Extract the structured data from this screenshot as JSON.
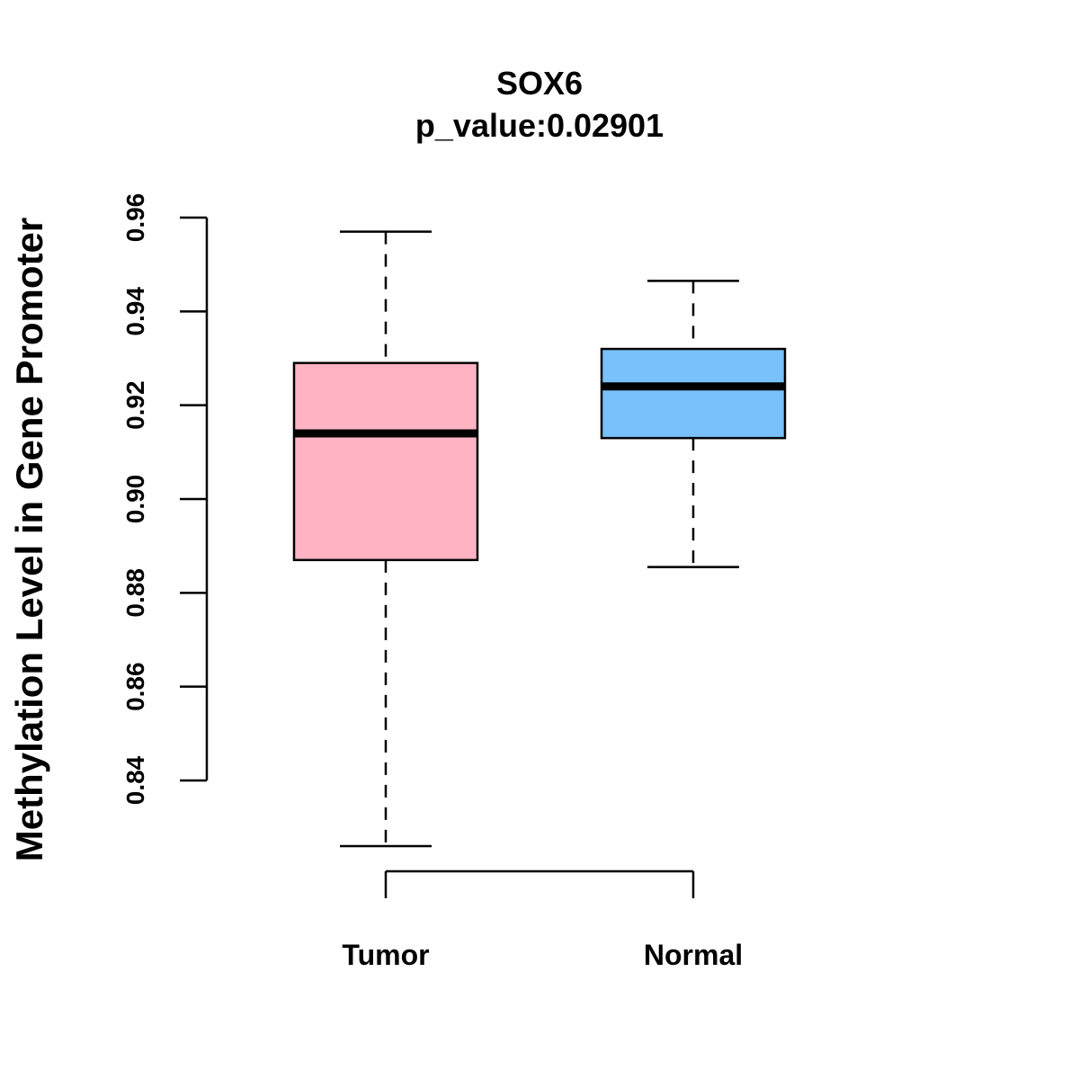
{
  "chart_data": {
    "type": "boxplot",
    "title": "SOX6",
    "subtitle": "p_value:0.02901",
    "ylabel": "Methylation Level in Gene Promoter",
    "xlabel": "",
    "yticks": [
      0.84,
      0.86,
      0.88,
      0.9,
      0.92,
      0.94,
      0.96
    ],
    "ytick_labels": [
      "0.84",
      "0.86",
      "0.88",
      "0.90",
      "0.92",
      "0.94",
      "0.96"
    ],
    "categories": [
      "Tumor",
      "Normal"
    ],
    "boxes": [
      {
        "name": "Tumor",
        "whisker_low": 0.826,
        "q1": 0.887,
        "median": 0.914,
        "q3": 0.929,
        "whisker_high": 0.957,
        "color": "#FFB3C3"
      },
      {
        "name": "Normal",
        "whisker_low": 0.8855,
        "q1": 0.913,
        "median": 0.924,
        "q3": 0.932,
        "whisker_high": 0.9465,
        "color": "#78C1FA"
      }
    ],
    "grid": false,
    "legend": "none"
  }
}
